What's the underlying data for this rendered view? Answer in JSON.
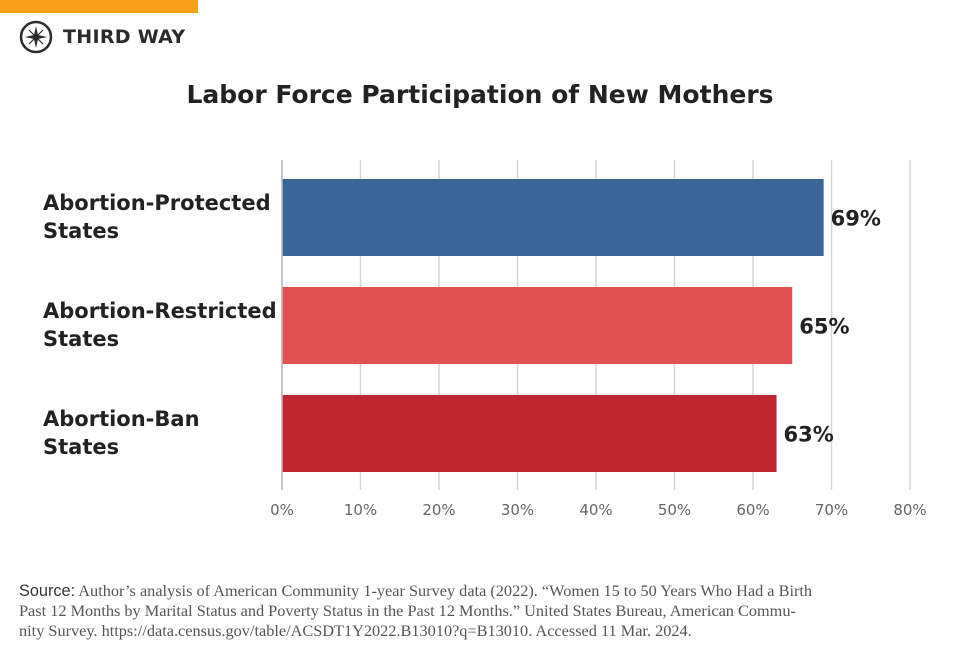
{
  "brand": {
    "name": "THIRD WAY",
    "accent": "#f9a11b",
    "icon": "compass-star-icon"
  },
  "chart_data": {
    "type": "bar",
    "orientation": "horizontal",
    "title": "Labor Force Participation of New Mothers",
    "categories": [
      [
        "Abortion-Protected",
        "States"
      ],
      [
        "Abortion-Restricted",
        "States"
      ],
      [
        "Abortion-Ban",
        "States"
      ]
    ],
    "values": [
      69,
      65,
      63
    ],
    "data_labels": [
      "69%",
      "65%",
      "63%"
    ],
    "colors": [
      "#3a6698",
      "#e15252",
      "#c0262f"
    ],
    "xlim": [
      0,
      80
    ],
    "xticks": [
      0,
      10,
      20,
      30,
      40,
      50,
      60,
      70,
      80
    ],
    "xtick_labels": [
      "0%",
      "10%",
      "20%",
      "30%",
      "40%",
      "50%",
      "60%",
      "70%",
      "80%"
    ],
    "grid": "vertical",
    "xlabel": "",
    "ylabel": ""
  },
  "source": {
    "label": "Source:",
    "lines": [
      "Author’s analysis of American Community 1-year Survey data (2022). “Women 15 to 50 Years Who Had a Birth",
      "Past 12 Months by Marital Status and Poverty Status in the Past 12 Months.” United States Bureau, American Commu-",
      "nity Survey. https://data.census.gov/table/ACSDT1Y2022.B13010?q=B13010. Accessed 11 Mar. 2024."
    ]
  }
}
